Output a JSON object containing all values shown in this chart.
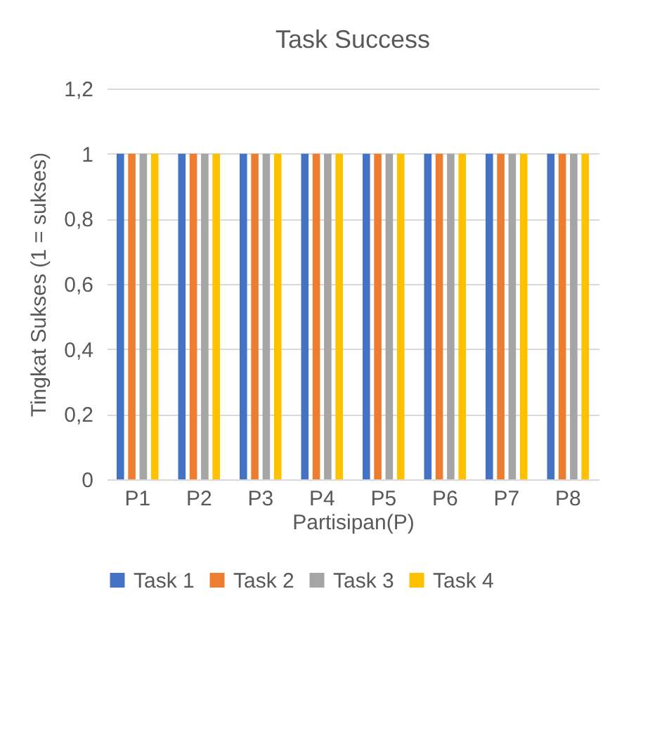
{
  "chart_data": {
    "type": "bar",
    "title": "Task Success",
    "xlabel": "Partisipan(P)",
    "ylabel": "Tingkat Sukses (1 = sukses)",
    "categories": [
      "P1",
      "P2",
      "P3",
      "P4",
      "P5",
      "P6",
      "P7",
      "P8"
    ],
    "series": [
      {
        "name": "Task 1",
        "color": "#4472c4",
        "values": [
          1,
          1,
          1,
          1,
          1,
          1,
          1,
          1
        ]
      },
      {
        "name": "Task 2",
        "color": "#ed7d31",
        "values": [
          1,
          1,
          1,
          1,
          1,
          1,
          1,
          1
        ]
      },
      {
        "name": "Task 3",
        "color": "#a5a5a5",
        "values": [
          1,
          1,
          1,
          1,
          1,
          1,
          1,
          1
        ]
      },
      {
        "name": "Task 4",
        "color": "#ffc000",
        "values": [
          1,
          1,
          1,
          1,
          1,
          1,
          1,
          1
        ]
      }
    ],
    "ylim": [
      0,
      1.2
    ],
    "yticks": [
      0,
      {
        "value": 0.2,
        "label": "0,2"
      },
      {
        "value": 0.4,
        "label": "0,4"
      },
      {
        "value": 0.6,
        "label": "0,6"
      },
      {
        "value": 0.8,
        "label": "0,8"
      },
      1,
      {
        "value": 1.2,
        "label": "1,2"
      }
    ],
    "grid": "y",
    "legend": "bottom"
  }
}
